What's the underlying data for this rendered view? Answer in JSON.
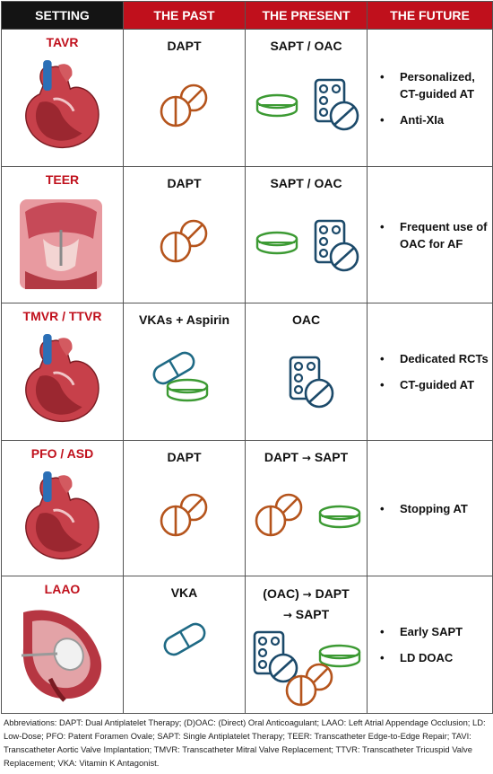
{
  "headers": {
    "setting": "SETTING",
    "past": "THE PAST",
    "present": "THE PRESENT",
    "future": "THE FUTURE"
  },
  "rows": [
    {
      "setting": "TAVR",
      "past": "DAPT",
      "present": "SAPT / OAC",
      "future": [
        "Personalized, CT-guided AT",
        "Anti-XIa"
      ],
      "past_icons": [
        "round-pills-icon"
      ],
      "present_icons": [
        "capsule-green-icon",
        "blister-pack-icon"
      ]
    },
    {
      "setting": "TEER",
      "past": "DAPT",
      "present": "SAPT / OAC",
      "future": [
        "Frequent use of OAC for AF"
      ],
      "past_icons": [
        "round-pills-icon"
      ],
      "present_icons": [
        "capsule-green-icon",
        "blister-pack-icon"
      ]
    },
    {
      "setting": "TMVR / TTVR",
      "past": "VKAs + Aspirin",
      "present": "OAC",
      "future": [
        "Dedicated RCTs",
        "CT-guided AT"
      ],
      "past_icons": [
        "capsule-blue-icon",
        "tablet-green-icon"
      ],
      "present_icons": [
        "blister-pack-icon"
      ]
    },
    {
      "setting": "PFO / ASD",
      "past": "DAPT",
      "present_a": "DAPT",
      "present_b": "SAPT",
      "future": [
        "Stopping AT"
      ],
      "past_icons": [
        "round-pills-icon"
      ],
      "present_icons": [
        "round-pills-icon",
        "capsule-green-icon"
      ]
    },
    {
      "setting": "LAAO",
      "past": "VKA",
      "present_a": "(OAC)",
      "present_b": "DAPT",
      "present_c": "SAPT",
      "future": [
        "Early SAPT",
        "LD DOAC"
      ],
      "past_icons": [
        "capsule-blue-icon"
      ],
      "present_icons": [
        "blister-pack-icon",
        "capsule-green-icon",
        "round-pills-icon"
      ]
    }
  ],
  "arrow": "→",
  "footnote": "Abbreviations: DAPT: Dual Antiplatelet Therapy; (D)OAC: (Direct) Oral Anticoagulant; LAAO: Left Atrial Appendage Occlusion; LD: Low-Dose; PFO: Patent Foramen Ovale; SAPT: Single Antiplatelet Therapy; TEER: Transcatheter Edge-to-Edge Repair; TAVI: Transcatheter Aortic Valve Implantation; TMVR: Transcatheter Mitral Valve Replacement; TTVR: Transcatheter Tricuspid Valve Replacement; VKA: Vitamin K Antagonist.",
  "colors": {
    "header_red": "#c0101c",
    "header_dark": "#141414",
    "pill_orange": "#b5541c",
    "pill_green": "#3c9a33",
    "pill_blue": "#1f6a85",
    "blister_navy": "#1c4a6a"
  }
}
